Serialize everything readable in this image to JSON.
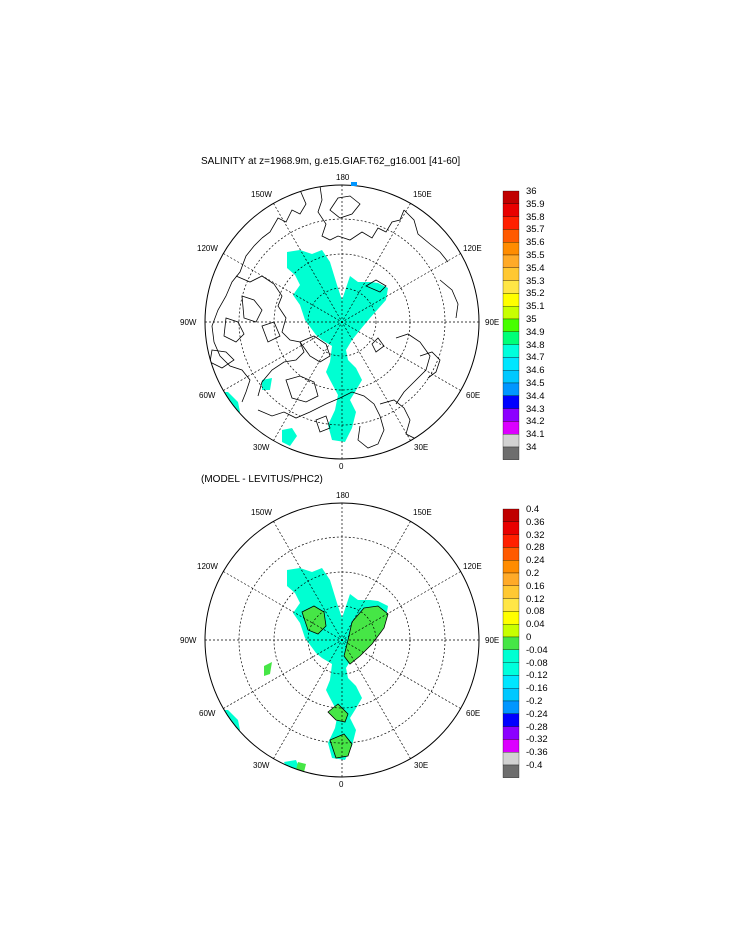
{
  "panels": [
    {
      "title": "SALINITY at z=1968.9m, g.e15.GIAF.T62_g16.001 [41-60]",
      "lon_labels": {
        "180": "180",
        "150E": "150E",
        "120E": "120E",
        "90E": "90E",
        "60E": "60E",
        "30E": "30E",
        "0": "0",
        "30W": "30W",
        "60W": "60W",
        "90W": "90W",
        "120W": "120W",
        "150W": "150W"
      },
      "colorbar": {
        "labels": [
          "36",
          "35.9",
          "35.8",
          "35.7",
          "35.6",
          "35.5",
          "35.4",
          "35.3",
          "35.2",
          "35.1",
          "35",
          "34.9",
          "34.8",
          "34.7",
          "34.6",
          "34.5",
          "34.4",
          "34.3",
          "34.2",
          "34.1",
          "34"
        ],
        "colors": [
          "#c00000",
          "#e80000",
          "#ff2000",
          "#ff5a00",
          "#ff8c00",
          "#ffaa28",
          "#ffc832",
          "#ffe646",
          "#ffff00",
          "#c8ff00",
          "#46ff00",
          "#00ff78",
          "#00ffdc",
          "#00e6ff",
          "#00c8ff",
          "#0096ff",
          "#0000ff",
          "#8c00ff",
          "#dc00ff",
          "#d2d2d2",
          "#6e6e6e"
        ]
      },
      "field_color": "#00ffd2"
    },
    {
      "title": "(MODEL - LEVITUS/PHC2)",
      "lon_labels": {
        "180": "180",
        "150E": "150E",
        "120E": "120E",
        "90E": "90E",
        "60E": "60E",
        "30E": "30E",
        "0": "0",
        "30W": "30W",
        "60W": "60W",
        "90W": "90W",
        "120W": "120W",
        "150W": "150W"
      },
      "colorbar": {
        "labels": [
          "0.4",
          "0.36",
          "0.32",
          "0.28",
          "0.24",
          "0.2",
          "0.16",
          "0.12",
          "0.08",
          "0.04",
          "0",
          "-0.04",
          "-0.08",
          "-0.12",
          "-0.16",
          "-0.2",
          "-0.24",
          "-0.28",
          "-0.32",
          "-0.36",
          "-0.4"
        ],
        "colors": [
          "#c00000",
          "#e80000",
          "#ff2000",
          "#ff5a00",
          "#ff8c00",
          "#ffaa28",
          "#ffc832",
          "#ffe646",
          "#ffff00",
          "#c8ff00",
          "#46e646",
          "#00ffd2",
          "#00ffdc",
          "#00e6ff",
          "#00c8ff",
          "#0096ff",
          "#0000ff",
          "#8c00ff",
          "#dc00ff",
          "#d2d2d2",
          "#6e6e6e"
        ]
      },
      "field_color": "#00ffd2",
      "positive_color": "#46e646"
    }
  ],
  "colors": {
    "coast": "#000000",
    "grid": "#000000"
  }
}
